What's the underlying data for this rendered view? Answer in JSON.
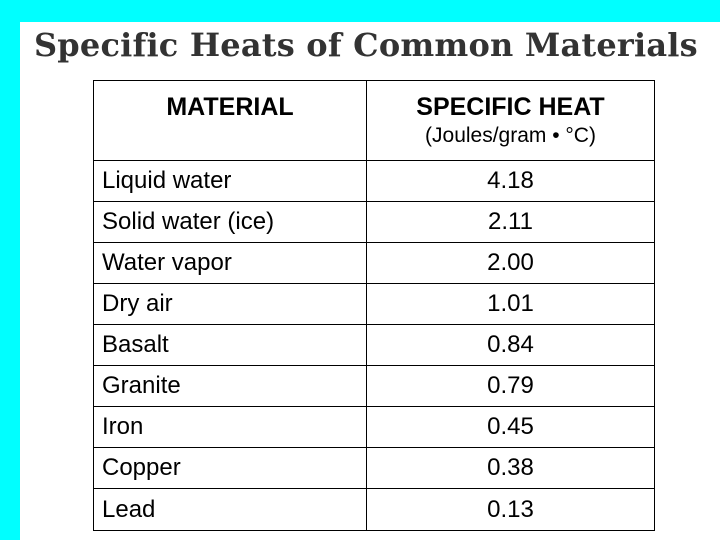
{
  "title": "Specific Heats of Common Materials",
  "table": {
    "headers": {
      "material": "MATERIAL",
      "specific_heat": "SPECIFIC HEAT",
      "unit": "(Joules/gram • °C)"
    },
    "rows": [
      {
        "material": "Liquid water",
        "value": "4.18"
      },
      {
        "material": "Solid water (ice)",
        "value": "2.11"
      },
      {
        "material": "Water vapor",
        "value": "2.00"
      },
      {
        "material": "Dry air",
        "value": "1.01"
      },
      {
        "material": "Basalt",
        "value": "0.84"
      },
      {
        "material": "Granite",
        "value": "0.79"
      },
      {
        "material": "Iron",
        "value": "0.45"
      },
      {
        "material": "Copper",
        "value": "0.38"
      },
      {
        "material": "Lead",
        "value": "0.13"
      }
    ]
  },
  "colors": {
    "background": "#00FFFF",
    "panel": "#FFFFFF",
    "title": "#333333"
  }
}
